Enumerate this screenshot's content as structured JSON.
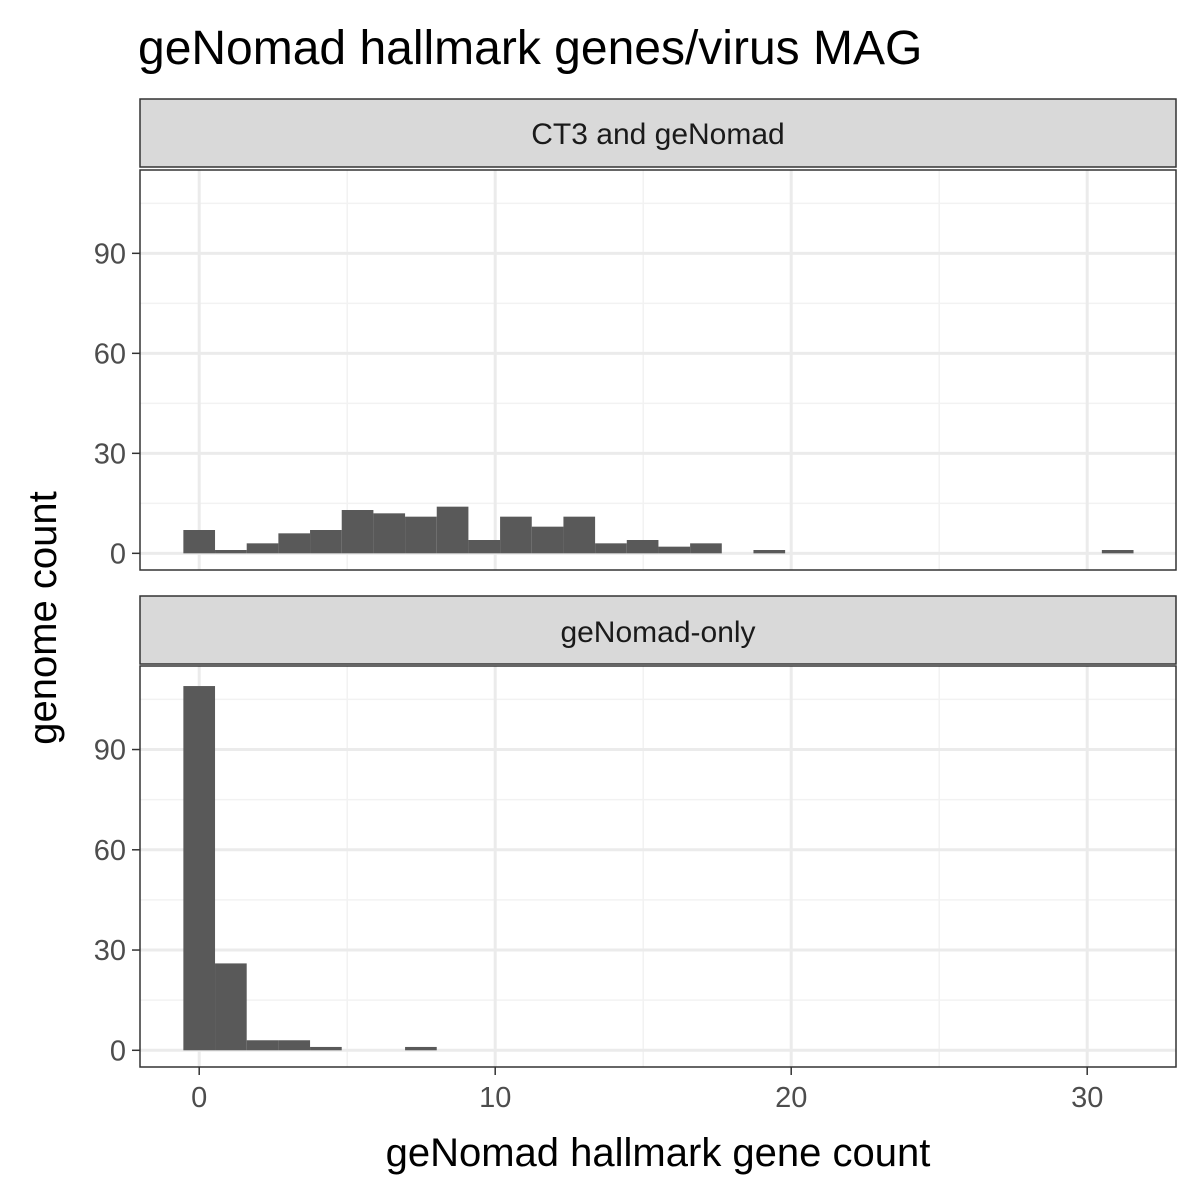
{
  "chart_data": {
    "type": "bar",
    "title": "geNomad hallmark genes/virus MAG",
    "xlabel": "geNomad hallmark gene count",
    "ylabel": "genome count",
    "xlim": [
      -2,
      33
    ],
    "ylim": [
      -5,
      115
    ],
    "x_ticks": [
      0,
      10,
      20,
      30
    ],
    "x_tick_labels": [
      "0",
      "10",
      "20",
      "30"
    ],
    "y_ticks": [
      0,
      30,
      60,
      90
    ],
    "y_tick_labels": [
      "0",
      "30",
      "60",
      "90"
    ],
    "bin_width": 1.07,
    "bar_color": "#595959",
    "grid": true,
    "panels": [
      {
        "label": "CT3 and geNomad",
        "bins": [
          {
            "x": 0.0,
            "count": 7
          },
          {
            "x": 1.07,
            "count": 1
          },
          {
            "x": 2.14,
            "count": 3
          },
          {
            "x": 3.21,
            "count": 6
          },
          {
            "x": 4.28,
            "count": 7
          },
          {
            "x": 5.35,
            "count": 13
          },
          {
            "x": 6.42,
            "count": 12
          },
          {
            "x": 7.49,
            "count": 11
          },
          {
            "x": 8.56,
            "count": 14
          },
          {
            "x": 9.63,
            "count": 4
          },
          {
            "x": 10.7,
            "count": 11
          },
          {
            "x": 11.77,
            "count": 8
          },
          {
            "x": 12.84,
            "count": 11
          },
          {
            "x": 13.91,
            "count": 3
          },
          {
            "x": 14.98,
            "count": 4
          },
          {
            "x": 16.05,
            "count": 2
          },
          {
            "x": 17.12,
            "count": 3
          },
          {
            "x": 19.26,
            "count": 1
          },
          {
            "x": 31.03,
            "count": 1
          }
        ]
      },
      {
        "label": "geNomad-only",
        "bins": [
          {
            "x": 0.0,
            "count": 109
          },
          {
            "x": 1.07,
            "count": 26
          },
          {
            "x": 2.14,
            "count": 3
          },
          {
            "x": 3.21,
            "count": 3
          },
          {
            "x": 4.28,
            "count": 1
          },
          {
            "x": 7.49,
            "count": 1
          }
        ]
      }
    ]
  }
}
